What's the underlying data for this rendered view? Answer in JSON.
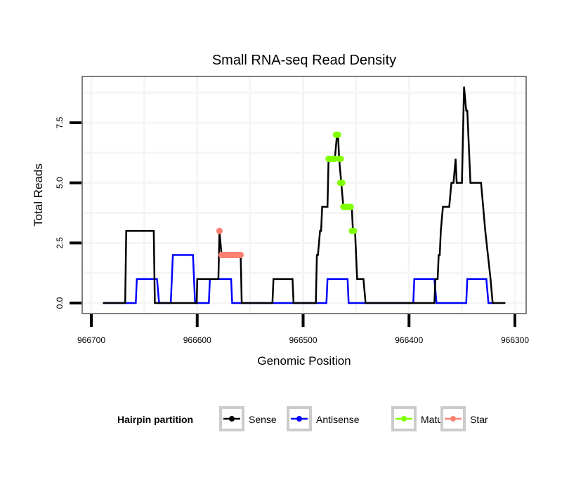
{
  "chart_data": {
    "type": "line",
    "title": "Small RNA-seq Read Density",
    "xlabel": "Genomic Position",
    "ylabel": "Total Reads",
    "xlim": [
      966700,
      966300
    ],
    "x_reversed": true,
    "ylim": [
      0,
      9
    ],
    "xticks": [
      966700,
      966600,
      966500,
      966400,
      966300
    ],
    "xtick_labels": [
      "966700",
      "966600",
      "966500",
      "966400",
      "966300"
    ],
    "yticks": [
      0,
      2.5,
      5,
      7.5
    ],
    "ytick_labels": [
      "0.0",
      "2.5",
      "5.0",
      "7.5"
    ],
    "grid": true,
    "legend": {
      "title": "Hairpin partition",
      "position": "bottom",
      "entries": [
        {
          "label": "Sense",
          "color": "#000000"
        },
        {
          "label": "Antisense",
          "color": "#0000ff"
        },
        {
          "label": "Mature",
          "color": "#7fff00"
        },
        {
          "label": "Star",
          "color": "#fa8072"
        }
      ]
    },
    "series": [
      {
        "name": "Sense",
        "color": "#000000",
        "kind": "line",
        "points": [
          [
            966689,
            0
          ],
          [
            966668,
            0
          ],
          [
            966667,
            3
          ],
          [
            966641,
            3
          ],
          [
            966640,
            0
          ],
          [
            966600.5,
            0
          ],
          [
            966600,
            1
          ],
          [
            966580,
            1
          ],
          [
            966579,
            3
          ],
          [
            966577,
            2
          ],
          [
            966559,
            2
          ],
          [
            966558,
            0
          ],
          [
            966529,
            0
          ],
          [
            966528,
            1
          ],
          [
            966510,
            1
          ],
          [
            966509,
            0
          ],
          [
            966488,
            0
          ],
          [
            966487,
            2
          ],
          [
            966486,
            2
          ],
          [
            966484,
            3
          ],
          [
            966483,
            3
          ],
          [
            966482,
            4
          ],
          [
            966477,
            4
          ],
          [
            966476,
            6
          ],
          [
            966470,
            6
          ],
          [
            966468,
            7
          ],
          [
            966467,
            7
          ],
          [
            966466,
            6
          ],
          [
            966464,
            5
          ],
          [
            966462,
            4
          ],
          [
            966454,
            4
          ],
          [
            966453,
            3
          ],
          [
            966451,
            3
          ],
          [
            966449,
            1
          ],
          [
            966443,
            1
          ],
          [
            966441,
            0
          ],
          [
            966376,
            0
          ],
          [
            966375,
            1
          ],
          [
            966373,
            1
          ],
          [
            966372,
            2
          ],
          [
            966371,
            2
          ],
          [
            966370,
            3
          ],
          [
            966368,
            4
          ],
          [
            966362,
            4
          ],
          [
            966360,
            5
          ],
          [
            966358,
            5
          ],
          [
            966356,
            6
          ],
          [
            966355,
            5
          ],
          [
            966350,
            5
          ],
          [
            966348,
            9
          ],
          [
            966346,
            8
          ],
          [
            966345,
            8
          ],
          [
            966342,
            5
          ],
          [
            966332,
            5
          ],
          [
            966330,
            4
          ],
          [
            966328,
            3
          ],
          [
            966323,
            1
          ],
          [
            966321,
            0
          ],
          [
            966309,
            0
          ]
        ]
      },
      {
        "name": "Antisense",
        "color": "#0000ff",
        "kind": "line",
        "points": [
          [
            966689,
            0
          ],
          [
            966658,
            0
          ],
          [
            966657,
            1
          ],
          [
            966638,
            1
          ],
          [
            966636,
            0
          ],
          [
            966625,
            0
          ],
          [
            966623,
            2
          ],
          [
            966604,
            2
          ],
          [
            966602,
            0
          ],
          [
            966589,
            0
          ],
          [
            966588,
            1
          ],
          [
            966568,
            1
          ],
          [
            966567,
            0
          ],
          [
            966478,
            0
          ],
          [
            966477,
            1
          ],
          [
            966458,
            1
          ],
          [
            966457,
            0
          ],
          [
            966396,
            0
          ],
          [
            966395,
            1
          ],
          [
            966376,
            1
          ],
          [
            966374,
            0
          ],
          [
            966346,
            0
          ],
          [
            966345,
            1
          ],
          [
            966327,
            1
          ],
          [
            966325,
            0
          ],
          [
            966319,
            0
          ]
        ]
      },
      {
        "name": "Mature",
        "color": "#7fff00",
        "kind": "points",
        "points": [
          [
            966469,
            7
          ],
          [
            966468,
            7
          ],
          [
            966467,
            7
          ],
          [
            966476,
            6
          ],
          [
            966475,
            6
          ],
          [
            966474,
            6
          ],
          [
            966473,
            6
          ],
          [
            966472,
            6
          ],
          [
            966471,
            6
          ],
          [
            966470,
            6
          ],
          [
            966466,
            6
          ],
          [
            966465,
            6
          ],
          [
            966464.5,
            6
          ],
          [
            966465,
            5
          ],
          [
            966464,
            5
          ],
          [
            966463,
            5
          ],
          [
            966462,
            4
          ],
          [
            966461,
            4
          ],
          [
            966460,
            4
          ],
          [
            966459,
            4
          ],
          [
            966458,
            4
          ],
          [
            966457,
            4
          ],
          [
            966456,
            4
          ],
          [
            966455,
            4
          ],
          [
            966454,
            3
          ],
          [
            966453,
            3
          ],
          [
            966452,
            3
          ]
        ]
      },
      {
        "name": "Star",
        "color": "#fa8072",
        "kind": "points",
        "points": [
          [
            966579,
            3
          ],
          [
            966577,
            2
          ],
          [
            966576,
            2
          ],
          [
            966575,
            2
          ],
          [
            966574,
            2
          ],
          [
            966573,
            2
          ],
          [
            966572,
            2
          ],
          [
            966571,
            2
          ],
          [
            966570,
            2
          ],
          [
            966569,
            2
          ],
          [
            966568,
            2
          ],
          [
            966567,
            2
          ],
          [
            966566,
            2
          ],
          [
            966565,
            2
          ],
          [
            966564,
            2
          ],
          [
            966563,
            2
          ],
          [
            966562,
            2
          ],
          [
            966561,
            2
          ],
          [
            966560,
            2
          ],
          [
            966559,
            2
          ]
        ]
      }
    ]
  }
}
